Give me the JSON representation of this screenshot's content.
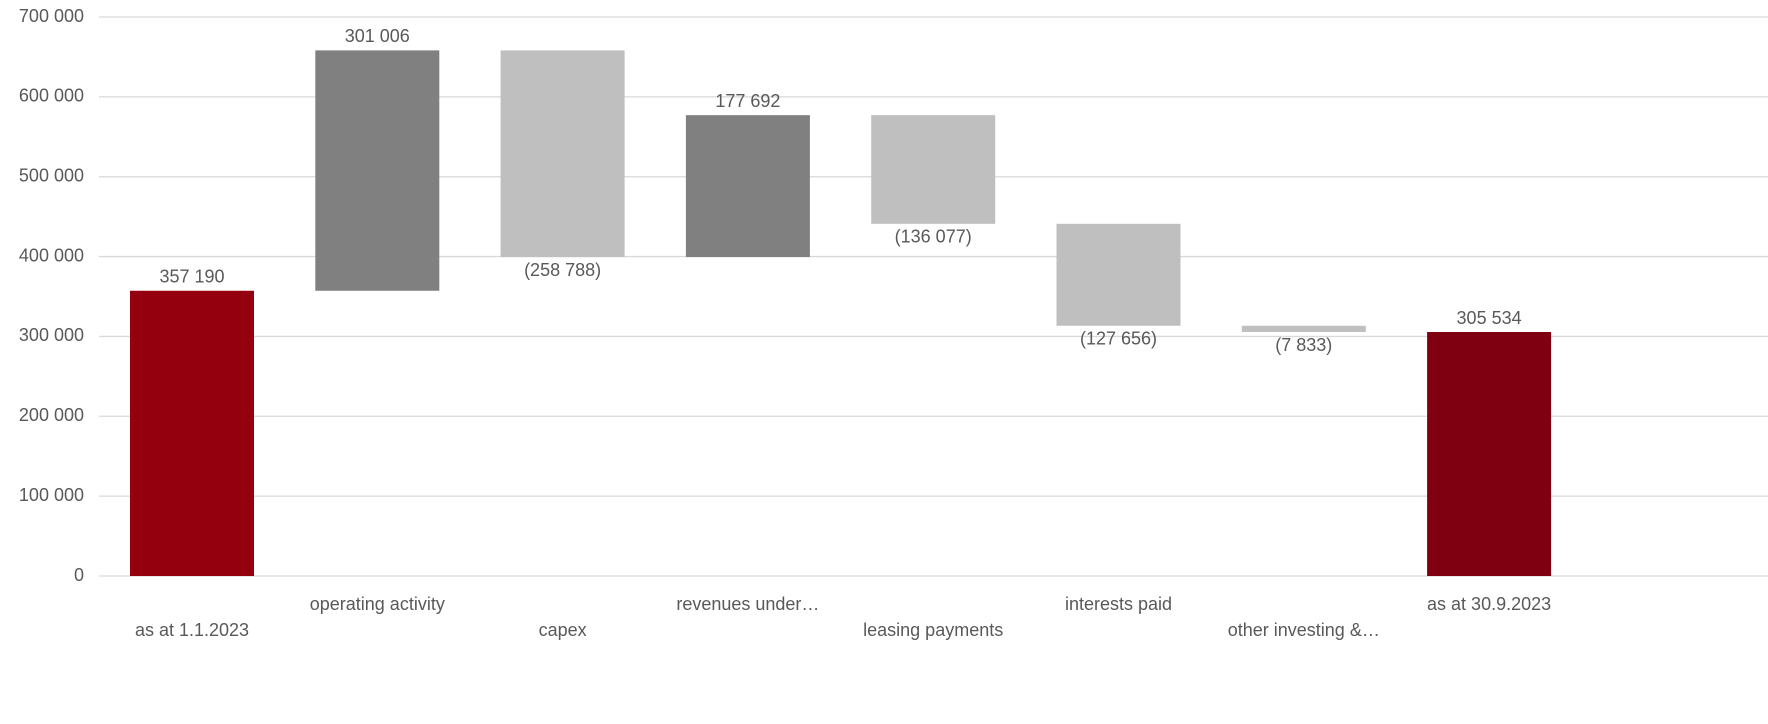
{
  "chart_data": {
    "type": "waterfall",
    "categories": [
      "as at 1.1.2023",
      "operating activity",
      "capex",
      "revenues under…",
      "leasing payments",
      "interests paid",
      "other investing &…",
      "as at 30.9.2023"
    ],
    "values": [
      357190,
      301006,
      -258788,
      177692,
      -136077,
      -127656,
      -7833,
      305534
    ],
    "value_labels": [
      "357 190",
      "301 006",
      "(258 788)",
      "177 692",
      "(136 077)",
      "(127 656)",
      "(7 833)",
      "305 534"
    ],
    "measure": [
      "absolute",
      "relative",
      "relative",
      "relative",
      "relative",
      "relative",
      "relative",
      "total"
    ],
    "colors": [
      "#95000f",
      "#808080",
      "#bfbfbf",
      "#808080",
      "#bfbfbf",
      "#bfbfbf",
      "#bfbfbf",
      "#7f0010"
    ],
    "ylim": [
      0,
      700000
    ],
    "yticks": [
      0,
      {
        "value": 100000,
        "label": "100 000"
      },
      {
        "value": 200000,
        "label": "200 000"
      },
      {
        "value": 300000,
        "label": "300 000"
      },
      {
        "value": 400000,
        "label": "400 000"
      },
      {
        "value": 500000,
        "label": "500 000"
      },
      {
        "value": 600000,
        "label": "600 000"
      },
      {
        "value": 700000,
        "label": "700 000"
      }
    ],
    "grid": true
  }
}
